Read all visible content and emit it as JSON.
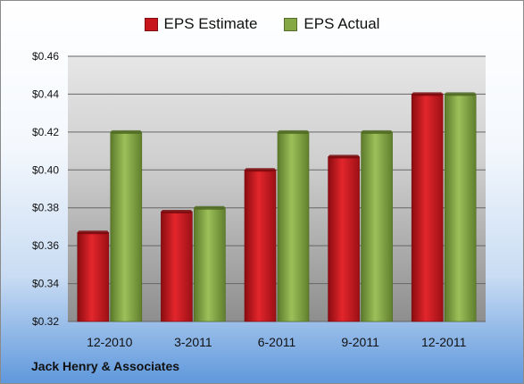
{
  "chart_data": {
    "type": "bar",
    "categories": [
      "12-2010",
      "3-2011",
      "6-2011",
      "9-2011",
      "12-2011"
    ],
    "series": [
      {
        "name": "EPS Estimate",
        "color": "#c8161d",
        "values": [
          0.367,
          0.378,
          0.4,
          0.407,
          0.44
        ]
      },
      {
        "name": "EPS Actual",
        "color": "#86a844",
        "values": [
          0.42,
          0.38,
          0.42,
          0.42,
          0.44
        ]
      }
    ],
    "ylim": [
      0.32,
      0.46
    ],
    "yticks": [
      "$0.46",
      "$0.44",
      "$0.42",
      "$0.40",
      "$0.38",
      "$0.36",
      "$0.34",
      "$0.32"
    ],
    "grid": true,
    "legend_position": "top"
  },
  "footer": {
    "company": "Jack Henry & Associates"
  }
}
